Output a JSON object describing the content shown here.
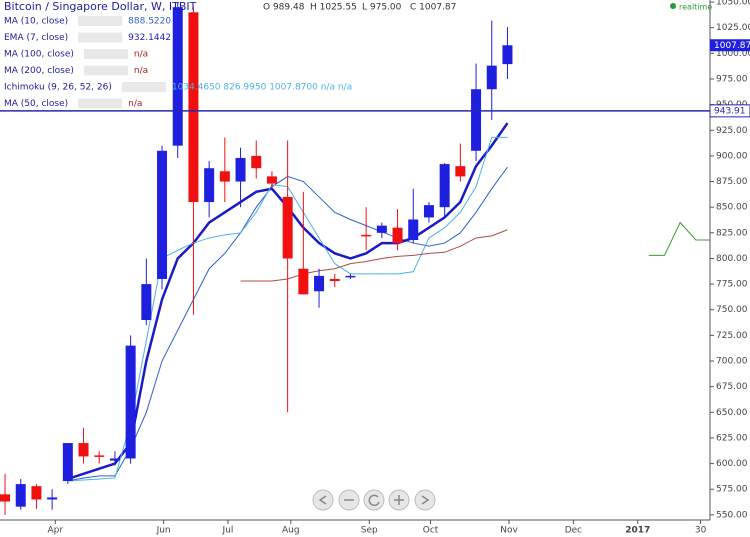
{
  "header": {
    "title": "Bitcoin / Singapore Dollar, W, ITBIT",
    "ohlc": [
      "O 989.48",
      "H 1025.55",
      "L 975.00",
      "C 1007.87"
    ],
    "realtime": "realtime"
  },
  "chart_data": {
    "type": "candlestick",
    "x": [
      0,
      1,
      2,
      3,
      4,
      5,
      6,
      7,
      8,
      9,
      10,
      11,
      12,
      13,
      14,
      15,
      16,
      17,
      18,
      19,
      20,
      21,
      22,
      23,
      24,
      25,
      26,
      27,
      28,
      29,
      30,
      31,
      32
    ],
    "open": [
      570,
      558,
      578,
      565,
      583,
      620,
      608,
      603,
      605,
      740,
      780,
      910,
      1040,
      855,
      885,
      875,
      900,
      880,
      860,
      790,
      768,
      780,
      782,
      823,
      825,
      830,
      818,
      840,
      850,
      890,
      905,
      965,
      989.48
    ],
    "high": [
      590,
      585,
      580,
      575,
      620,
      635,
      612,
      612,
      725,
      800,
      910,
      1050,
      1045,
      895,
      918,
      908,
      915,
      885,
      915,
      865,
      790,
      785,
      785,
      850,
      835,
      848,
      868,
      855,
      893,
      912,
      990,
      1032,
      1025.55
    ],
    "low": [
      550,
      555,
      556,
      555,
      580,
      600,
      600,
      598,
      600,
      735,
      770,
      898,
      745,
      840,
      855,
      850,
      878,
      868,
      650,
      765,
      752,
      772,
      780,
      808,
      820,
      808,
      815,
      835,
      840,
      875,
      895,
      935,
      975
    ],
    "close": [
      563,
      580,
      565,
      567,
      620,
      607,
      607,
      605,
      715,
      775,
      905,
      1045,
      855,
      888,
      875,
      898,
      888,
      873,
      800,
      765,
      783,
      778,
      783,
      822,
      832,
      815,
      838,
      852,
      892,
      880,
      965,
      988,
      1007.87
    ],
    "up_color": "#1f1fe0",
    "down_color": "#f01010",
    "xlim": [
      -0.32,
      44.9
    ],
    "xticks": [
      {
        "value": 3.2,
        "label": "Apr"
      },
      {
        "value": 10.1,
        "label": "Jun"
      },
      {
        "value": 14.2,
        "label": "Jul"
      },
      {
        "value": 18.2,
        "label": "Aug"
      },
      {
        "value": 23.2,
        "label": "Sep"
      },
      {
        "value": 27.1,
        "label": "Oct"
      },
      {
        "value": 32.1,
        "label": "Nov"
      },
      {
        "value": 36.2,
        "label": "Dec"
      },
      {
        "value": 40.3,
        "label": "2017"
      },
      {
        "value": 44.3,
        "label": "30"
      }
    ],
    "ylim": [
      545,
      1052
    ],
    "yticks": [
      {
        "value": 550,
        "label": "550.00"
      },
      {
        "value": 575,
        "label": "575.00"
      },
      {
        "value": 600,
        "label": "600.00"
      },
      {
        "value": 625,
        "label": "625.00"
      },
      {
        "value": 650,
        "label": "650.00"
      },
      {
        "value": 675,
        "label": "675.00"
      },
      {
        "value": 700,
        "label": "700.00"
      },
      {
        "value": 725,
        "label": "725.00"
      },
      {
        "value": 750,
        "label": "750.00"
      },
      {
        "value": 775,
        "label": "775.00"
      },
      {
        "value": 800,
        "label": "800.00"
      },
      {
        "value": 825,
        "label": "825.00"
      },
      {
        "value": 850,
        "label": "850.00"
      },
      {
        "value": 875,
        "label": "875.00"
      },
      {
        "value": 900,
        "label": "900.00"
      },
      {
        "value": 925,
        "label": "925.00"
      },
      {
        "value": 950,
        "label": "950.00"
      },
      {
        "value": 975,
        "label": "975.00"
      },
      {
        "value": 1000,
        "label": "1000.00"
      },
      {
        "value": 1025,
        "label": "1025.00"
      },
      {
        "value": 1050,
        "label": "1050.00"
      }
    ],
    "price_line": {
      "value": 943.91,
      "label": "943.91",
      "color": "#2727b0"
    },
    "last_price": {
      "value": 1007.87,
      "label": "1007.87"
    },
    "indicators": [
      {
        "name": "MA (10, close)",
        "value_text": "888.5220",
        "lines": [
          {
            "color": "#2f5fd0",
            "width": 1,
            "x": [
              4,
              5,
              6,
              7,
              8,
              9,
              10,
              11,
              12,
              13,
              14,
              15,
              16,
              17,
              18,
              19,
              20,
              21,
              22,
              23,
              24,
              25,
              26,
              27,
              28,
              29,
              30,
              31,
              32
            ],
            "values": [
              583,
              586,
              588,
              588,
              615,
              650,
              700,
              730,
              760,
              790,
              805,
              825,
              850,
              870,
              880,
              875,
              860,
              845,
              838,
              832,
              826,
              820,
              815,
              812,
              815,
              825,
              845,
              868,
              889
            ]
          }
        ]
      },
      {
        "name": "EMA (7, close)",
        "value_text": "932.1442",
        "lines": [
          {
            "color": "#1a1ac8",
            "width": 2.5,
            "x": [
              4,
              5,
              6,
              7,
              8,
              9,
              10,
              11,
              12,
              13,
              14,
              15,
              16,
              17,
              18,
              19,
              20,
              21,
              22,
              23,
              24,
              25,
              26,
              27,
              28,
              29,
              30,
              31,
              32
            ],
            "values": [
              585,
              590,
              595,
              600,
              620,
              700,
              760,
              800,
              815,
              835,
              845,
              855,
              865,
              868,
              850,
              830,
              815,
              805,
              800,
              805,
              815,
              815,
              820,
              830,
              840,
              855,
              890,
              910,
              932
            ]
          }
        ]
      },
      {
        "name": "MA (100, close)",
        "value_text": "n/a"
      },
      {
        "name": "MA (200, close)",
        "value_text": "n/a"
      },
      {
        "name": "Ichimoku (9, 26, 52, 26)",
        "value_text": "1034.4650 826.9950 1007.8700 n/a n/a",
        "lines": [
          {
            "color": "#4fb0e8",
            "width": 1,
            "x": [
              4,
              5,
              6,
              7,
              8,
              9,
              10,
              11,
              12,
              13,
              14,
              15,
              16,
              17,
              18,
              19,
              20,
              21,
              22,
              23,
              24,
              25,
              26,
              27,
              28,
              29,
              30,
              31,
              32
            ],
            "values": [
              583,
              584,
              585,
              586,
              640,
              720,
              800,
              808,
              815,
              820,
              823,
              825,
              845,
              872,
              870,
              845,
              820,
              795,
              785,
              785,
              785,
              785,
              787,
              820,
              830,
              845,
              870,
              918,
              918
            ]
          },
          {
            "color": "#b04a4a",
            "width": 1,
            "x": [
              15,
              16,
              17,
              18,
              19,
              20,
              21,
              22,
              23,
              24,
              25,
              26,
              27,
              28,
              29,
              30,
              31,
              32
            ],
            "values": [
              778,
              778,
              778,
              780,
              785,
              788,
              790,
              795,
              797,
              800,
              802,
              803,
              805,
              806,
              812,
              820,
              822,
              828
            ]
          },
          {
            "color": "#3a9a30",
            "width": 1,
            "x": [
              41,
              42,
              43,
              44,
              45
            ],
            "values": [
              803,
              803,
              835,
              818,
              818
            ]
          }
        ]
      },
      {
        "name": "MA (50, close)",
        "value_text": "n/a"
      }
    ]
  }
}
